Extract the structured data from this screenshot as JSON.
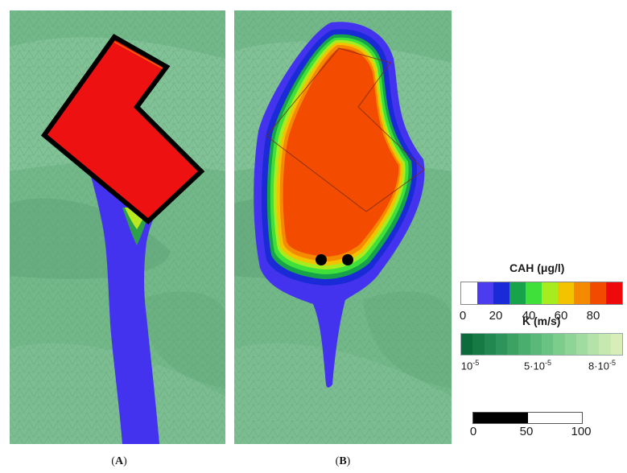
{
  "panels": [
    {
      "id": "A",
      "caption_open": "(",
      "caption_letter": "A",
      "caption_close": ")"
    },
    {
      "id": "B",
      "caption_open": "(",
      "caption_letter": "B",
      "caption_close": ")"
    }
  ],
  "cah_legend": {
    "title": "CAH (μg/l)",
    "colors": [
      "#ffffff",
      "#4b3cf0",
      "#1a2ad6",
      "#16a34a",
      "#3fe03a",
      "#a7ec1e",
      "#f4c300",
      "#f58a00",
      "#f24a00",
      "#ee0a0a"
    ],
    "tick_labels": [
      "0",
      "20",
      "40",
      "60",
      "80"
    ]
  },
  "k_legend": {
    "title": "K (m/s)",
    "colors": [
      "#0b6b3a",
      "#157a44",
      "#21884f",
      "#2e955a",
      "#3ca264",
      "#4aae6e",
      "#5ab978",
      "#6bc382",
      "#7ccc8c",
      "#8dd496",
      "#a0dca0",
      "#b3e3a9",
      "#c6e9b1",
      "#d8eeb9"
    ],
    "tick_base": [
      "10",
      "5·10",
      "8·10"
    ],
    "tick_exp": [
      "-5",
      "-5",
      "-5"
    ]
  },
  "scale_bar": {
    "colors": [
      "#000000",
      "#ffffff"
    ],
    "tick_labels": [
      "0",
      "50",
      "100"
    ]
  },
  "colors": {
    "mesh_background": "#73b889",
    "plume_blue": "#4433ee",
    "source_red": "#ee1111",
    "plume_orange": "#f34b00",
    "source_outline": "#000000",
    "well_marker": "#000000"
  }
}
